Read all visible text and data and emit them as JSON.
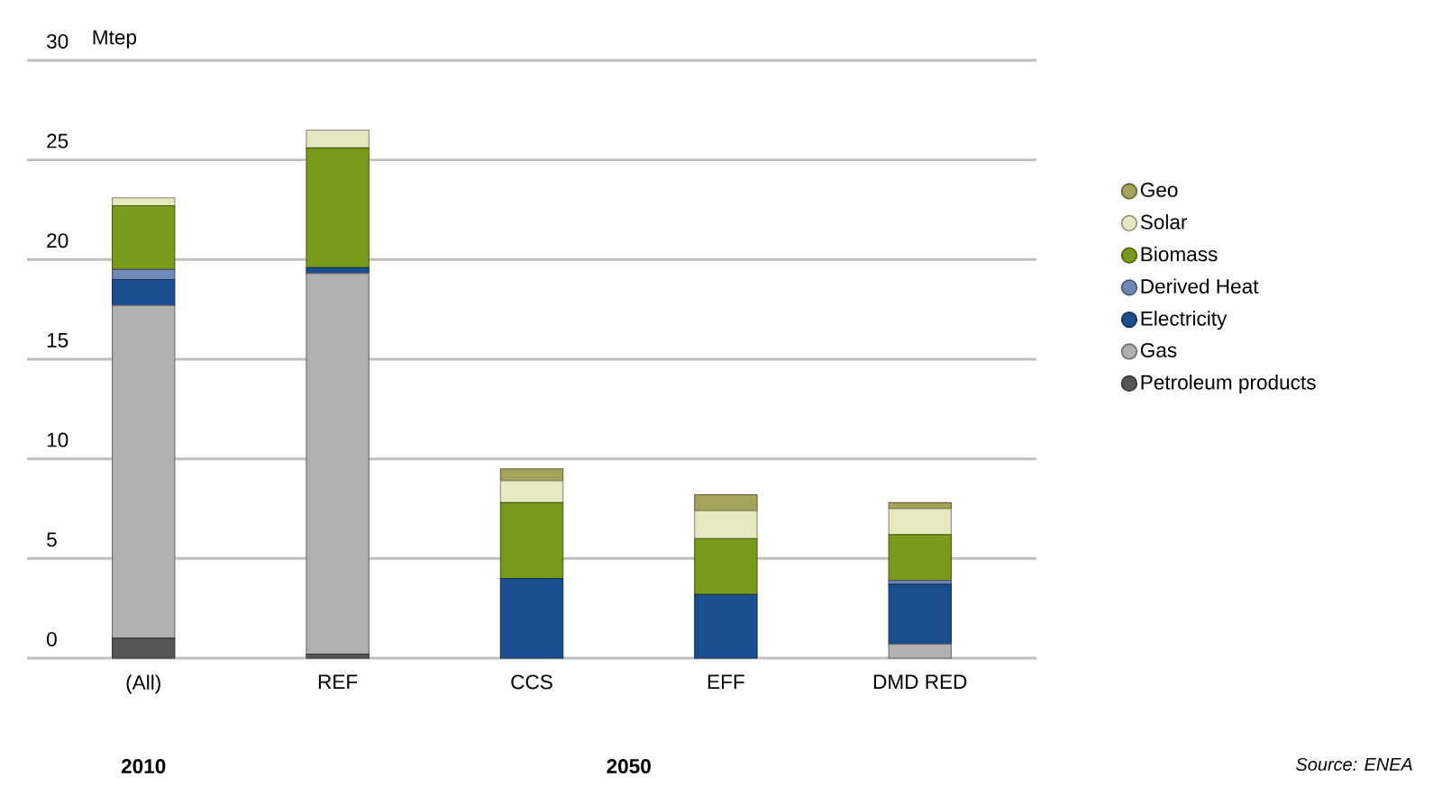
{
  "chart_data": {
    "type": "bar",
    "stacked": true,
    "ylabel": "Mtep",
    "categories": [
      "(All)",
      "REF",
      "CCS",
      "EFF",
      "DMD RED"
    ],
    "series": [
      {
        "name": "Petroleum products",
        "color": "#555555",
        "values": [
          1.0,
          0.2,
          0,
          0,
          0
        ]
      },
      {
        "name": "Gas",
        "color": "#b0b0b0",
        "values": [
          16.7,
          19.1,
          0,
          0,
          0.7
        ]
      },
      {
        "name": "Electricity",
        "color": "#1a4f8f",
        "values": [
          1.3,
          0.3,
          4.0,
          3.2,
          3.0
        ]
      },
      {
        "name": "Derived Heat",
        "color": "#6f88b8",
        "values": [
          0.5,
          0,
          0,
          0,
          0.2
        ]
      },
      {
        "name": "Biomass",
        "color": "#7a9a1a",
        "values": [
          3.2,
          6.0,
          3.8,
          2.8,
          2.3
        ]
      },
      {
        "name": "Solar",
        "color": "#e6e8c0",
        "values": [
          0.4,
          0.9,
          1.1,
          1.4,
          1.3
        ]
      },
      {
        "name": "Geo",
        "color": "#a3a35a",
        "values": [
          0,
          0,
          0.6,
          0.8,
          0.3
        ]
      }
    ],
    "ylim": [
      0,
      30
    ],
    "yticks": [
      0,
      5,
      10,
      15,
      20,
      25,
      30
    ],
    "grid": "y",
    "legend": "right",
    "annotations": [
      "2010",
      "2050",
      "Source: ENEA"
    ]
  }
}
